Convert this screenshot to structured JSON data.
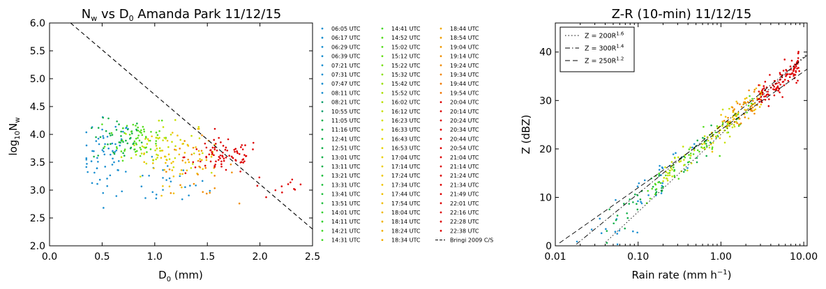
{
  "chart_data": [
    {
      "type": "scatter",
      "title_main": "N",
      "title_sub1": "w",
      "title_mid": " vs D",
      "title_sub2": "0",
      "title_rest": " Amanda Park 11/12/15",
      "xlabel_main": "D",
      "xlabel_sub": "0",
      "xlabel_rest": " (mm)",
      "ylabel_main": "log",
      "ylabel_sub1": "10",
      "ylabel_mid": "N",
      "ylabel_sub2": "w",
      "xlim": [
        0.0,
        2.5
      ],
      "ylim": [
        2.0,
        6.0
      ],
      "x_ticks": [
        "0.0",
        "0.5",
        "1.0",
        "1.5",
        "2.0",
        "2.5"
      ],
      "y_ticks": [
        "2.0",
        "2.5",
        "3.0",
        "3.5",
        "4.0",
        "4.5",
        "5.0",
        "5.5",
        "6.0"
      ],
      "reference_line": {
        "name": "Bringi 2009 C/S",
        "x": [
          0.2,
          2.5
        ],
        "y": [
          6.0,
          2.3
        ],
        "style": "dashed"
      },
      "clusters": [
        {
          "color": "#1a8fd0",
          "cx": 0.55,
          "cy": 3.6,
          "sx": 0.12,
          "sy": 0.35,
          "n": 60,
          "xmin": 0.35,
          "xmax": 1.8,
          "ymin": 2.3,
          "ymax": 4.7
        },
        {
          "color": "#1a8fd0",
          "cx": 1.1,
          "cy": 3.1,
          "sx": 0.2,
          "sy": 0.2,
          "n": 25,
          "xmin": 0.6,
          "xmax": 1.75,
          "ymin": 2.3,
          "ymax": 3.6
        },
        {
          "color": "#12b04a",
          "cx": 0.65,
          "cy": 3.9,
          "sx": 0.12,
          "sy": 0.2,
          "n": 45,
          "xmin": 0.4,
          "xmax": 1.2,
          "ymin": 3.0,
          "ymax": 4.3
        },
        {
          "color": "#55dd1e",
          "cx": 0.85,
          "cy": 3.95,
          "sx": 0.15,
          "sy": 0.2,
          "n": 55,
          "xmin": 0.5,
          "xmax": 1.6,
          "ymin": 3.0,
          "ymax": 4.3
        },
        {
          "color": "#c8e000",
          "cx": 1.05,
          "cy": 3.75,
          "sx": 0.18,
          "sy": 0.22,
          "n": 55,
          "xmin": 0.6,
          "xmax": 1.6,
          "ymin": 3.0,
          "ymax": 4.3
        },
        {
          "color": "#f0c000",
          "cx": 1.25,
          "cy": 3.6,
          "sx": 0.18,
          "sy": 0.25,
          "n": 50,
          "xmin": 0.9,
          "xmax": 1.75,
          "ymin": 2.9,
          "ymax": 4.1
        },
        {
          "color": "#f08c00",
          "cx": 1.4,
          "cy": 3.4,
          "sx": 0.18,
          "sy": 0.25,
          "n": 30,
          "xmin": 1.0,
          "xmax": 2.45,
          "ymin": 2.1,
          "ymax": 4.1
        },
        {
          "color": "#dd0000",
          "cx": 1.65,
          "cy": 3.6,
          "sx": 0.18,
          "sy": 0.16,
          "n": 80,
          "xmin": 1.2,
          "xmax": 2.1,
          "ymin": 3.0,
          "ymax": 4.1
        },
        {
          "color": "#dd0000",
          "cx": 2.2,
          "cy": 3.05,
          "sx": 0.15,
          "sy": 0.12,
          "n": 12,
          "xmin": 1.9,
          "xmax": 2.45,
          "ymin": 2.8,
          "ymax": 3.3
        }
      ]
    },
    {
      "type": "scatter",
      "title": "Z-R (10-min) 11/12/15",
      "xlabel_main": "Rain rate (mm h",
      "xlabel_sup": "−1",
      "xlabel_rest": ")",
      "ylabel": "Z (dBZ)",
      "x_scale": "log",
      "xlim": [
        0.01,
        11.0
      ],
      "ylim": [
        0,
        46
      ],
      "x_ticks": [
        {
          "v": 0.01,
          "label": "0.01"
        },
        {
          "v": 0.1,
          "label": "0.10"
        },
        {
          "v": 1.0,
          "label": "1.00"
        },
        {
          "v": 10.0,
          "label": "10.00"
        }
      ],
      "y_ticks": [
        {
          "v": 0,
          "label": "0"
        },
        {
          "v": 10,
          "label": "10"
        },
        {
          "v": 20,
          "label": "20"
        },
        {
          "v": 30,
          "label": "30"
        },
        {
          "v": 40,
          "label": "40"
        }
      ],
      "relations": [
        {
          "label_main": "Z = 200R",
          "label_sup": "1.6",
          "a": 200,
          "b": 1.6,
          "dash": "1.5,3"
        },
        {
          "label_main": "Z = 300R",
          "label_sup": "1.4",
          "a": 300,
          "b": 1.4,
          "dash": "7,3,1.5,3"
        },
        {
          "label_main": "Z = 250R",
          "label_sup": "1.2",
          "a": 250,
          "b": 1.2,
          "dash": "7,4"
        }
      ],
      "groups": [
        {
          "color": "#1a8fd0",
          "lr_min": -1.8,
          "lr_max": -0.3,
          "n": 45,
          "noise": 2.2
        },
        {
          "color": "#12b04a",
          "lr_min": -1.4,
          "lr_max": -0.1,
          "n": 50,
          "noise": 1.6
        },
        {
          "color": "#55dd1e",
          "lr_min": -0.9,
          "lr_max": 0.4,
          "n": 70,
          "noise": 1.3
        },
        {
          "color": "#c8e000",
          "lr_min": -0.7,
          "lr_max": 0.2,
          "n": 60,
          "noise": 1.5
        },
        {
          "color": "#f0c000",
          "lr_min": -0.2,
          "lr_max": 0.5,
          "n": 50,
          "noise": 1.6
        },
        {
          "color": "#f08c00",
          "lr_min": 0.0,
          "lr_max": 0.45,
          "n": 35,
          "noise": 1.5
        },
        {
          "color": "#dd0000",
          "lr_min": 0.45,
          "lr_max": 0.95,
          "n": 110,
          "noise": 1.2
        }
      ]
    }
  ],
  "legend": {
    "columns": [
      [
        {
          "label": "06:05 UTC",
          "color": "#1a8fd0"
        },
        {
          "label": "06:17 UTC",
          "color": "#1a8fd0"
        },
        {
          "label": "06:29 UTC",
          "color": "#1a8fd0"
        },
        {
          "label": "06:39 UTC",
          "color": "#1a8fd0"
        },
        {
          "label": "07:21 UTC",
          "color": "#1a8fd0"
        },
        {
          "label": "07:31 UTC",
          "color": "#1a8fd0"
        },
        {
          "label": "07:47 UTC",
          "color": "#1a8fd0"
        },
        {
          "label": "08:11 UTC",
          "color": "#1a8fd0"
        },
        {
          "label": "08:21 UTC",
          "color": "#12a070"
        },
        {
          "label": "10:55 UTC",
          "color": "#12a070"
        },
        {
          "label": "11:05 UTC",
          "color": "#12b04a"
        },
        {
          "label": "11:16 UTC",
          "color": "#12b04a"
        },
        {
          "label": "12:41 UTC",
          "color": "#12b04a"
        },
        {
          "label": "12:51 UTC",
          "color": "#12b04a"
        },
        {
          "label": "13:01 UTC",
          "color": "#12b04a"
        },
        {
          "label": "13:11 UTC",
          "color": "#12b04a"
        },
        {
          "label": "13:21 UTC",
          "color": "#22c040"
        },
        {
          "label": "13:31 UTC",
          "color": "#22c040"
        },
        {
          "label": "13:41 UTC",
          "color": "#22c040"
        },
        {
          "label": "13:51 UTC",
          "color": "#22c040"
        },
        {
          "label": "14:01 UTC",
          "color": "#33d030"
        },
        {
          "label": "14:11 UTC",
          "color": "#33d030"
        },
        {
          "label": "14:21 UTC",
          "color": "#44d828"
        },
        {
          "label": "14:31 UTC",
          "color": "#44d828"
        }
      ],
      [
        {
          "label": "14:41 UTC",
          "color": "#44d828"
        },
        {
          "label": "14:52 UTC",
          "color": "#55dd1e"
        },
        {
          "label": "15:02 UTC",
          "color": "#55dd1e"
        },
        {
          "label": "15:12 UTC",
          "color": "#66e016"
        },
        {
          "label": "15:22 UTC",
          "color": "#77e010"
        },
        {
          "label": "15:32 UTC",
          "color": "#88e008"
        },
        {
          "label": "15:42 UTC",
          "color": "#99e000"
        },
        {
          "label": "15:52 UTC",
          "color": "#aae000"
        },
        {
          "label": "16:02 UTC",
          "color": "#bbe000"
        },
        {
          "label": "16:12 UTC",
          "color": "#c8e000"
        },
        {
          "label": "16:23 UTC",
          "color": "#d4e000"
        },
        {
          "label": "16:33 UTC",
          "color": "#dede00"
        },
        {
          "label": "16:43 UTC",
          "color": "#e4d800"
        },
        {
          "label": "16:53 UTC",
          "color": "#e8d400"
        },
        {
          "label": "17:04 UTC",
          "color": "#ecd000"
        },
        {
          "label": "17:14 UTC",
          "color": "#eecc00"
        },
        {
          "label": "17:24 UTC",
          "color": "#f0c800"
        },
        {
          "label": "17:34 UTC",
          "color": "#f0c400"
        },
        {
          "label": "17:44 UTC",
          "color": "#f0c000"
        },
        {
          "label": "17:54 UTC",
          "color": "#f0bc00"
        },
        {
          "label": "18:04 UTC",
          "color": "#f0b800"
        },
        {
          "label": "18:14 UTC",
          "color": "#f0b400"
        },
        {
          "label": "18:24 UTC",
          "color": "#f0b000"
        },
        {
          "label": "18:34 UTC",
          "color": "#f0ac00"
        }
      ],
      [
        {
          "label": "18:44 UTC",
          "color": "#f0a800"
        },
        {
          "label": "18:54 UTC",
          "color": "#f0a000"
        },
        {
          "label": "19:04 UTC",
          "color": "#f09800"
        },
        {
          "label": "19:14 UTC",
          "color": "#f09000"
        },
        {
          "label": "19:24 UTC",
          "color": "#f08c00"
        },
        {
          "label": "19:34 UTC",
          "color": "#f08400"
        },
        {
          "label": "19:44 UTC",
          "color": "#f07c00"
        },
        {
          "label": "19:54 UTC",
          "color": "#f07400"
        },
        {
          "label": "20:04 UTC",
          "color": "#dd0000"
        },
        {
          "label": "20:14 UTC",
          "color": "#dd0000"
        },
        {
          "label": "20:24 UTC",
          "color": "#dd0000"
        },
        {
          "label": "20:34 UTC",
          "color": "#dd0000"
        },
        {
          "label": "20:44 UTC",
          "color": "#dd0000"
        },
        {
          "label": "20:54 UTC",
          "color": "#dd0000"
        },
        {
          "label": "21:04 UTC",
          "color": "#dd0000"
        },
        {
          "label": "21:14 UTC",
          "color": "#dd0000"
        },
        {
          "label": "21:24 UTC",
          "color": "#dd0000"
        },
        {
          "label": "21:34 UTC",
          "color": "#dd0000"
        },
        {
          "label": "21:49 UTC",
          "color": "#dd0000"
        },
        {
          "label": "22:01 UTC",
          "color": "#dd0000"
        },
        {
          "label": "22:16 UTC",
          "color": "#dd0000"
        },
        {
          "label": "22:28 UTC",
          "color": "#dd0000"
        },
        {
          "label": "22:38 UTC",
          "color": "#dd0000"
        },
        {
          "label": "Bringi 2009 C/S",
          "color": "#000000",
          "line": true
        }
      ]
    ]
  }
}
